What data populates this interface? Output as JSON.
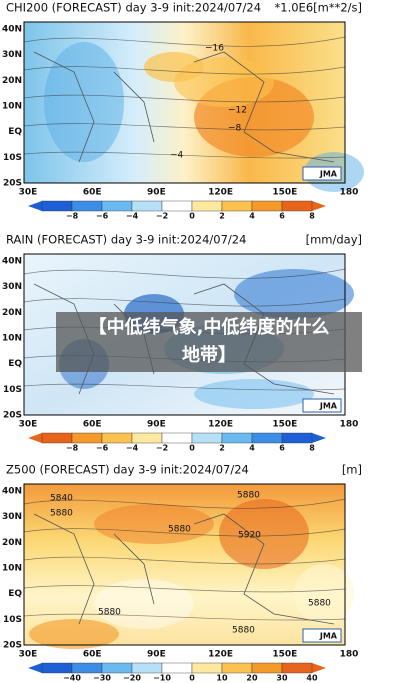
{
  "caption": "【中低纬气象,中低纬度的什么地带】",
  "panels": [
    {
      "title": "CHI200 (FORECAST) day 3-9 init:2024/07/24",
      "unit": "*1.0E6[m**2/s]",
      "lat_labels": [
        "40N",
        "30N",
        "20N",
        "10N",
        "EQ",
        "10S",
        "20S"
      ],
      "lon_labels": [
        "30E",
        "60E",
        "90E",
        "120E",
        "150E",
        "180"
      ],
      "colorbar_labels": [
        "−8",
        "−6",
        "−4",
        "−2",
        "0",
        "2",
        "4",
        "6",
        "8"
      ],
      "contour_labels": [
        "−16",
        "−12",
        "−8",
        "−4"
      ],
      "logo": "JMA"
    },
    {
      "title": "RAIN (FORECAST) day 3-9 init:2024/07/24",
      "unit": "[mm/day]",
      "lat_labels": [
        "40N",
        "30N",
        "20N",
        "10N",
        "EQ",
        "10S",
        "20S"
      ],
      "lon_labels": [
        "30E",
        "60E",
        "90E",
        "120E",
        "150E",
        "180"
      ],
      "colorbar_labels": [
        "−8",
        "−6",
        "−4",
        "−2",
        "0",
        "2",
        "4",
        "6",
        "8"
      ],
      "contour_labels": [],
      "logo": "JMA"
    },
    {
      "title": "Z500 (FORECAST) day 3-9 init:2024/07/24",
      "unit": "[m]",
      "lat_labels": [
        "40N",
        "30N",
        "20N",
        "10N",
        "EQ",
        "10S",
        "20S"
      ],
      "lon_labels": [
        "30E",
        "60E",
        "90E",
        "120E",
        "150E",
        "180"
      ],
      "colorbar_labels": [
        "−40",
        "−30",
        "−20",
        "−10",
        "0",
        "10",
        "20",
        "30",
        "40"
      ],
      "contour_labels": [
        "5840",
        "5880",
        "5880",
        "5880",
        "5920",
        "5880",
        "5880",
        "5880"
      ],
      "logo": "JMA"
    }
  ]
}
